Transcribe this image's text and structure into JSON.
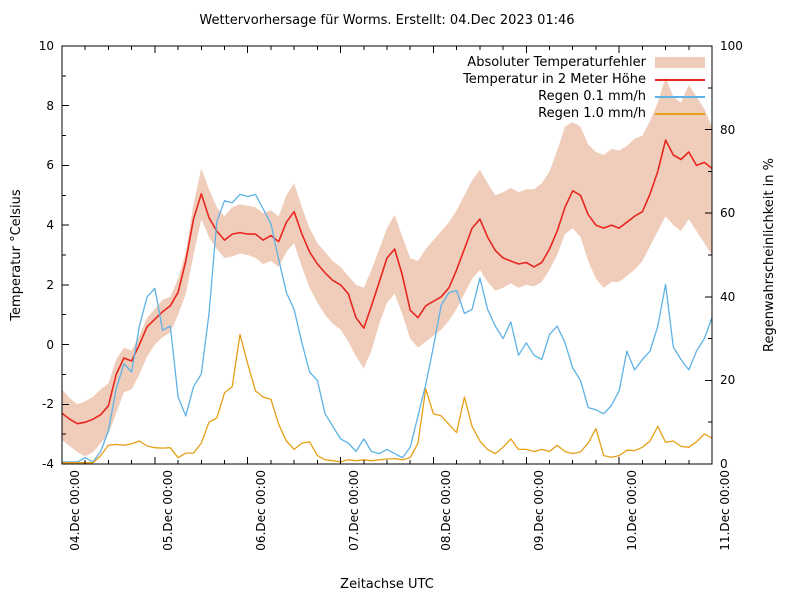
{
  "title": "Wettervorhersage für Worms. Erstellt: 04.Dec 2023 01:46",
  "axes": {
    "x_label": "Zeitachse UTC",
    "y_left_label": "Temperatur °Celsius",
    "y_right_label": "Regenwahrscheinlichkeit in %",
    "y_left_ticks": [
      -4,
      -2,
      0,
      2,
      4,
      6,
      8,
      10
    ],
    "y_right_ticks": [
      0,
      20,
      40,
      60,
      80,
      100
    ],
    "x_tick_labels": [
      "04.Dec 00:00",
      "05.Dec 00:00",
      "06.Dec 00:00",
      "07.Dec 00:00",
      "08.Dec 00:00",
      "09.Dec 00:00",
      "10.Dec 00:00",
      "11.Dec 00:00"
    ]
  },
  "colors": {
    "band": "#f0cdba",
    "temperature": "#e8271f",
    "rain01": "#5fb2e6",
    "rain10": "#e6a017",
    "axis": "#000000"
  },
  "legend": [
    {
      "label": "Absoluter Temperaturfehler",
      "type": "band",
      "color": "band"
    },
    {
      "label": "Temperatur in 2 Meter Höhe",
      "type": "line",
      "color": "temperature"
    },
    {
      "label": "Regen 0.1 mm/h",
      "type": "line",
      "color": "rain01"
    },
    {
      "label": "Regen 1.0 mm/h",
      "type": "line",
      "color": "rain10"
    }
  ],
  "chart_data": {
    "type": "line",
    "title": "Wettervorhersage für Worms. Erstellt: 04.Dec 2023 01:46",
    "xlabel": "Zeitachse UTC",
    "x_unit": "hours since 04.Dec 2023 00:00 UTC",
    "x_range_hours": [
      0,
      168
    ],
    "x_step_hours": 2,
    "y_left_range": [
      -4,
      10
    ],
    "y_right_range": [
      0,
      100
    ],
    "grid": false,
    "legend_position": "top-right-inside",
    "band": {
      "name": "Absoluter Temperaturfehler",
      "axis": "left",
      "upper": [
        -1.5,
        -1.8,
        -2.0,
        -1.9,
        -1.75,
        -1.5,
        -1.3,
        -0.5,
        -0.1,
        -0.2,
        0.3,
        0.9,
        1.2,
        1.5,
        1.6,
        2.2,
        3.1,
        4.7,
        5.9,
        5.2,
        4.6,
        4.3,
        4.6,
        4.7,
        4.65,
        4.6,
        4.4,
        4.5,
        4.3,
        5.0,
        5.4,
        4.6,
        3.9,
        3.4,
        3.1,
        2.8,
        2.6,
        2.3,
        2.0,
        1.9,
        2.5,
        3.2,
        3.9,
        4.35,
        3.6,
        2.9,
        2.8,
        3.2,
        3.5,
        3.8,
        4.1,
        4.5,
        5.0,
        5.5,
        5.85,
        5.4,
        5.0,
        5.1,
        5.25,
        5.1,
        5.2,
        5.2,
        5.4,
        5.8,
        6.5,
        7.3,
        7.45,
        7.3,
        6.7,
        6.45,
        6.35,
        6.55,
        6.5,
        6.65,
        6.9,
        7.0,
        7.5,
        8.1,
        8.95,
        8.3,
        8.1,
        8.7,
        8.3,
        7.9,
        7.3
      ],
      "lower": [
        -3.2,
        -3.4,
        -3.6,
        -3.75,
        -3.6,
        -3.3,
        -3.0,
        -2.3,
        -1.6,
        -1.5,
        -1.0,
        -0.4,
        0.0,
        0.25,
        0.4,
        1.0,
        1.7,
        3.0,
        4.2,
        3.6,
        3.2,
        2.9,
        2.95,
        3.05,
        3.0,
        2.9,
        2.7,
        2.8,
        2.6,
        3.1,
        3.4,
        2.6,
        1.9,
        1.4,
        1.0,
        0.7,
        0.5,
        0.1,
        -0.4,
        -0.8,
        -0.2,
        0.7,
        1.4,
        1.7,
        1.0,
        0.2,
        -0.1,
        0.1,
        0.3,
        0.5,
        0.8,
        1.2,
        1.7,
        2.2,
        2.5,
        2.1,
        1.8,
        1.9,
        2.05,
        1.9,
        2.0,
        1.95,
        2.1,
        2.5,
        3.0,
        3.7,
        3.9,
        3.6,
        2.8,
        2.2,
        1.9,
        2.1,
        2.1,
        2.3,
        2.5,
        2.8,
        3.3,
        3.8,
        4.3,
        4.0,
        3.8,
        4.2,
        3.8,
        3.4,
        3.0
      ]
    },
    "series": [
      {
        "name": "Temperatur in 2 Meter Höhe",
        "axis": "left",
        "color": "temperature",
        "values": [
          -2.3,
          -2.5,
          -2.65,
          -2.6,
          -2.5,
          -2.35,
          -2.05,
          -1.0,
          -0.45,
          -0.55,
          0.0,
          0.6,
          0.85,
          1.1,
          1.3,
          1.75,
          2.8,
          4.2,
          5.05,
          4.25,
          3.8,
          3.5,
          3.7,
          3.75,
          3.7,
          3.7,
          3.5,
          3.65,
          3.45,
          4.1,
          4.45,
          3.7,
          3.1,
          2.7,
          2.4,
          2.15,
          2.0,
          1.7,
          0.9,
          0.55,
          1.3,
          2.1,
          2.9,
          3.2,
          2.3,
          1.15,
          0.9,
          1.3,
          1.45,
          1.6,
          1.9,
          2.5,
          3.2,
          3.9,
          4.2,
          3.6,
          3.15,
          2.9,
          2.8,
          2.7,
          2.75,
          2.6,
          2.75,
          3.2,
          3.8,
          4.6,
          5.15,
          5.0,
          4.35,
          4.0,
          3.9,
          4.0,
          3.9,
          4.1,
          4.3,
          4.45,
          5.05,
          5.8,
          6.85,
          6.35,
          6.2,
          6.45,
          6.0,
          6.1,
          5.9
        ]
      },
      {
        "name": "Regen 0.1 mm/h",
        "axis": "right",
        "color": "rain01",
        "values": [
          0.5,
          0.5,
          0.5,
          1.5,
          0.5,
          3,
          8,
          18,
          24,
          22,
          33,
          40,
          42,
          32,
          33,
          16,
          11.5,
          18.5,
          21.5,
          36,
          58,
          63,
          62.5,
          64.5,
          64,
          64.5,
          61,
          57.5,
          49,
          41,
          37,
          29,
          22,
          20,
          12,
          9,
          6,
          5,
          3,
          6,
          3,
          2.5,
          3.5,
          2.5,
          1.5,
          4,
          11.5,
          19,
          28,
          38,
          41,
          41.5,
          36,
          37,
          44.5,
          37,
          33,
          30,
          34,
          26,
          29,
          26,
          25,
          31,
          33,
          29,
          23,
          20,
          13.5,
          13,
          12,
          14,
          17.5,
          27,
          22.5,
          25,
          27,
          33,
          43,
          28,
          25,
          22.5,
          27,
          30,
          35
        ]
      },
      {
        "name": "Regen 1.0 mm/h",
        "axis": "right",
        "color": "rain10",
        "values": [
          0.3,
          0.3,
          0.3,
          0.3,
          0.3,
          2,
          4.5,
          4.7,
          4.5,
          4.8,
          5.5,
          4.3,
          3.9,
          3.8,
          3.9,
          1.5,
          2.6,
          2.6,
          5,
          10,
          11,
          17,
          18.5,
          31,
          24,
          17.5,
          16,
          15.5,
          9.5,
          5.5,
          3.5,
          5,
          5.3,
          2,
          1,
          0.8,
          0.5,
          1,
          0.8,
          1,
          0.8,
          1,
          1.2,
          1.3,
          1,
          1.5,
          5,
          18,
          12,
          11.5,
          9.5,
          7.5,
          16,
          9,
          5.5,
          3.5,
          2.5,
          4,
          6,
          3.5,
          3.5,
          3,
          3.5,
          3,
          4.5,
          3,
          2.5,
          2.9,
          5,
          8.5,
          2,
          1.6,
          2,
          3.3,
          3.2,
          4,
          5.5,
          9,
          5.2,
          5.5,
          4.2,
          4,
          5.3,
          7.2,
          6.2
        ]
      }
    ]
  }
}
